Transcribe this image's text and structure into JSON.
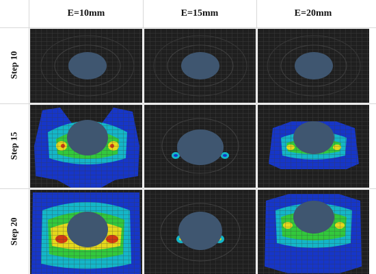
{
  "columns": [
    "E=10mm",
    "E=15mm",
    "E=20mm"
  ],
  "rows": [
    "Step 10",
    "Step 15",
    "Step 20"
  ],
  "colors": {
    "mesh_bg": "#1f1f1f",
    "mesh_line": "#3a3a3a",
    "hole": "#3f5670",
    "blue": "#1636c8",
    "cyan": "#14b6c8",
    "green": "#32c83c",
    "yellow": "#e4d81c",
    "red": "#d23a12"
  }
}
